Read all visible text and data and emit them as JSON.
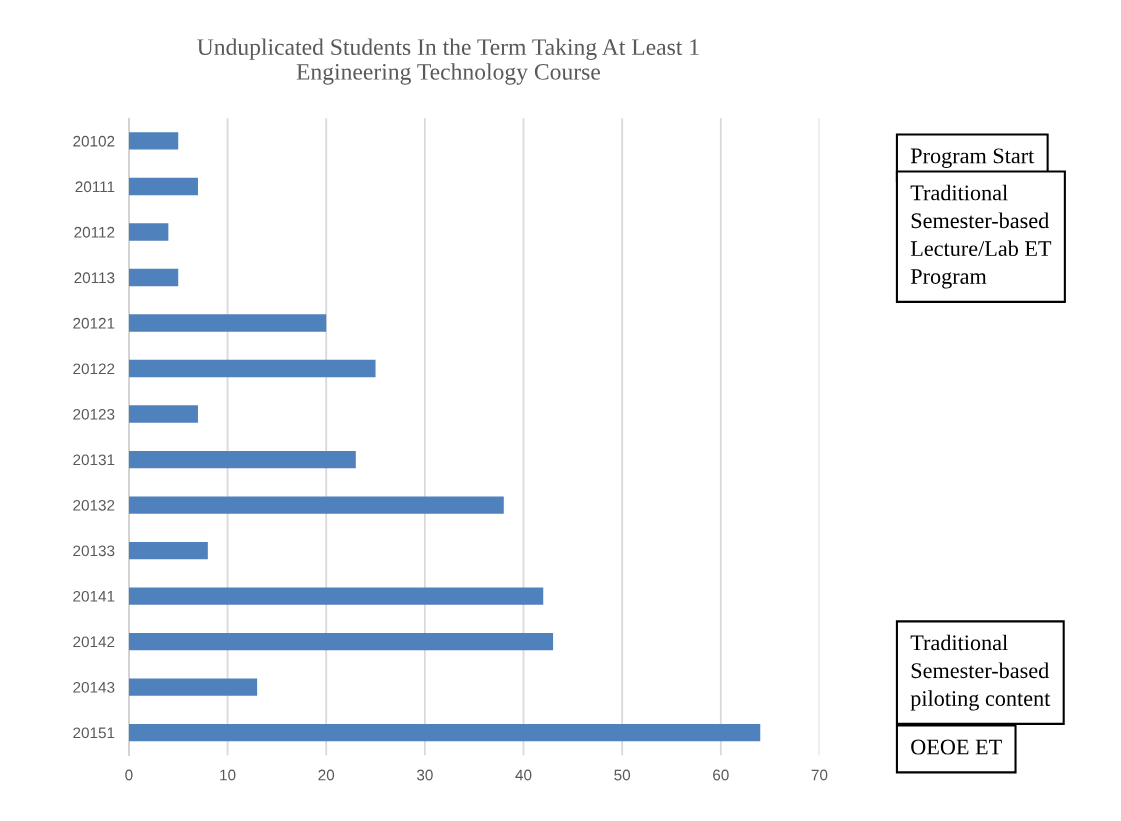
{
  "chart_data": {
    "type": "bar",
    "orientation": "horizontal",
    "title": "Unduplicated Students In the Term Taking At Least 1\nEngineering Technology Course",
    "categories": [
      "20102",
      "20111",
      "20112",
      "20113",
      "20121",
      "20122",
      "20123",
      "20131",
      "20132",
      "20133",
      "20141",
      "20142",
      "20143",
      "20151"
    ],
    "values": [
      5,
      7,
      4,
      5,
      20,
      25,
      7,
      23,
      38,
      8,
      42,
      43,
      13,
      64
    ],
    "color": "#4f81bd",
    "xlim": [
      0,
      70
    ],
    "xticks": [
      0,
      10,
      20,
      30,
      40,
      50,
      60,
      70
    ],
    "grid": "x",
    "annotations": [
      "Program Start",
      "Traditional\nSemester-based\nLecture/Lab ET\nProgram",
      "Traditional\nSemester-based\npiloting content",
      "OEOE ET"
    ]
  }
}
